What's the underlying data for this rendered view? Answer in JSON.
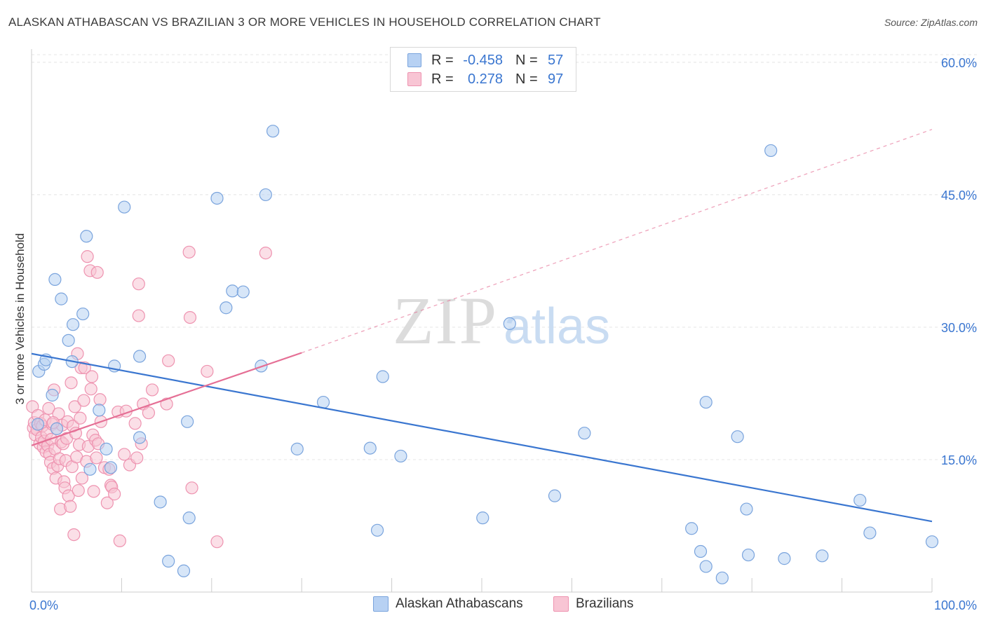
{
  "header": {
    "title": "ALASKAN ATHABASCAN VS BRAZILIAN 3 OR MORE VEHICLES IN HOUSEHOLD CORRELATION CHART",
    "source": "Source: ZipAtlas.com"
  },
  "watermark": {
    "zip": "ZIP",
    "atlas": "atlas"
  },
  "colors": {
    "blue_fill": "#b7d1f3",
    "blue_stroke": "#7aa4dd",
    "blue_line": "#3a76d0",
    "pink_fill": "#f8c5d4",
    "pink_stroke": "#ee93b0",
    "pink_line": "#e56f95",
    "axis_label": "#3a76d0",
    "grid": "#e4e4e4"
  },
  "legend_top": [
    {
      "r_label": "R =",
      "r_value": "-0.458",
      "n_label": "N =",
      "n_value": "57"
    },
    {
      "r_label": "R =",
      "r_value": "0.278",
      "n_label": "N =",
      "n_value": "97"
    }
  ],
  "legend_bottom": {
    "blue": "Alaskan Athabascans",
    "pink": "Brazilians"
  },
  "chart_data": {
    "type": "scatter",
    "title": "ALASKAN ATHABASCAN VS BRAZILIAN 3 OR MORE VEHICLES IN HOUSEHOLD CORRELATION CHART",
    "xlabel": "",
    "ylabel": "3 or more Vehicles in Household",
    "xlim": [
      0,
      100
    ],
    "ylim": [
      0,
      61.5
    ],
    "x_tick_labels": [
      "0.0%",
      "100.0%"
    ],
    "y_ticks": [
      15,
      30,
      45,
      60
    ],
    "y_tick_labels": [
      "15.0%",
      "30.0%",
      "45.0%",
      "60.0%"
    ],
    "grid": true,
    "legend": "top-center",
    "series": [
      {
        "name": "Alaskan Athabascans",
        "trend": {
          "x": [
            0,
            100
          ],
          "y": [
            27.0,
            8.0
          ]
        },
        "points": [
          [
            0.8,
            25.0
          ],
          [
            1.4,
            25.8
          ],
          [
            1.6,
            26.3
          ],
          [
            2.3,
            22.3
          ],
          [
            2.6,
            35.4
          ],
          [
            3.3,
            33.2
          ],
          [
            4.1,
            28.5
          ],
          [
            4.5,
            26.1
          ],
          [
            4.6,
            30.3
          ],
          [
            5.7,
            31.5
          ],
          [
            6.1,
            40.3
          ],
          [
            6.5,
            13.9
          ],
          [
            7.5,
            20.6
          ],
          [
            8.3,
            16.2
          ],
          [
            8.8,
            14.1
          ],
          [
            9.2,
            25.6
          ],
          [
            10.3,
            43.6
          ],
          [
            12.0,
            26.7
          ],
          [
            12.0,
            17.5
          ],
          [
            14.3,
            10.2
          ],
          [
            15.2,
            3.5
          ],
          [
            16.9,
            2.4
          ],
          [
            17.3,
            19.3
          ],
          [
            17.5,
            8.4
          ],
          [
            20.6,
            44.6
          ],
          [
            21.6,
            32.2
          ],
          [
            22.3,
            34.1
          ],
          [
            23.5,
            34.0
          ],
          [
            25.5,
            25.6
          ],
          [
            26.0,
            45.0
          ],
          [
            26.8,
            52.2
          ],
          [
            29.5,
            16.2
          ],
          [
            32.4,
            21.5
          ],
          [
            37.6,
            16.3
          ],
          [
            38.4,
            7.0
          ],
          [
            39.0,
            24.4
          ],
          [
            41.0,
            15.4
          ],
          [
            50.1,
            8.4
          ],
          [
            53.1,
            30.4
          ],
          [
            58.1,
            10.9
          ],
          [
            61.4,
            18.0
          ],
          [
            73.3,
            7.2
          ],
          [
            74.3,
            4.6
          ],
          [
            74.9,
            21.5
          ],
          [
            74.9,
            2.9
          ],
          [
            76.7,
            1.6
          ],
          [
            78.4,
            17.6
          ],
          [
            79.4,
            9.4
          ],
          [
            79.6,
            4.2
          ],
          [
            82.1,
            50.0
          ],
          [
            83.6,
            3.8
          ],
          [
            87.8,
            4.1
          ],
          [
            92.0,
            10.4
          ],
          [
            93.1,
            6.7
          ],
          [
            100.0,
            5.7
          ],
          [
            0.7,
            19.0
          ],
          [
            2.8,
            18.5
          ]
        ]
      },
      {
        "name": "Brazilians",
        "trend": {
          "x": [
            0,
            30,
            100
          ],
          "y": [
            16.6,
            27.1,
            52.4
          ]
        },
        "points": [
          [
            0.1,
            21.0
          ],
          [
            0.2,
            18.6
          ],
          [
            0.3,
            19.2
          ],
          [
            0.4,
            17.8
          ],
          [
            0.6,
            18.4
          ],
          [
            0.7,
            20.0
          ],
          [
            0.9,
            16.8
          ],
          [
            1.0,
            19.1
          ],
          [
            1.1,
            17.5
          ],
          [
            1.2,
            18.8
          ],
          [
            1.3,
            16.4
          ],
          [
            1.4,
            17.1
          ],
          [
            1.5,
            19.5
          ],
          [
            1.6,
            15.9
          ],
          [
            1.7,
            18.0
          ],
          [
            1.8,
            16.6
          ],
          [
            1.9,
            20.8
          ],
          [
            2.0,
            15.6
          ],
          [
            2.1,
            14.7
          ],
          [
            2.2,
            17.3
          ],
          [
            2.3,
            19.0
          ],
          [
            2.4,
            14.0
          ],
          [
            2.5,
            22.9
          ],
          [
            2.6,
            16.2
          ],
          [
            2.7,
            12.9
          ],
          [
            2.8,
            18.5
          ],
          [
            2.9,
            14.3
          ],
          [
            3.0,
            20.2
          ],
          [
            3.1,
            15.1
          ],
          [
            3.2,
            9.4
          ],
          [
            3.3,
            17.0
          ],
          [
            3.4,
            18.9
          ],
          [
            3.5,
            16.8
          ],
          [
            3.6,
            12.5
          ],
          [
            3.7,
            11.8
          ],
          [
            3.8,
            14.9
          ],
          [
            3.9,
            17.4
          ],
          [
            4.0,
            19.3
          ],
          [
            4.1,
            10.9
          ],
          [
            4.3,
            9.7
          ],
          [
            4.4,
            23.7
          ],
          [
            4.5,
            14.2
          ],
          [
            4.6,
            18.8
          ],
          [
            4.7,
            6.5
          ],
          [
            4.8,
            21.0
          ],
          [
            4.9,
            18.0
          ],
          [
            5.0,
            15.3
          ],
          [
            5.1,
            27.0
          ],
          [
            5.2,
            11.5
          ],
          [
            5.3,
            16.7
          ],
          [
            5.4,
            19.7
          ],
          [
            5.5,
            25.4
          ],
          [
            5.6,
            12.9
          ],
          [
            5.8,
            21.7
          ],
          [
            5.9,
            25.4
          ],
          [
            6.1,
            14.8
          ],
          [
            6.2,
            38.0
          ],
          [
            6.3,
            16.5
          ],
          [
            6.5,
            36.4
          ],
          [
            6.6,
            23.0
          ],
          [
            6.7,
            24.4
          ],
          [
            6.8,
            17.8
          ],
          [
            6.9,
            11.4
          ],
          [
            7.1,
            17.2
          ],
          [
            7.2,
            15.2
          ],
          [
            7.3,
            36.2
          ],
          [
            7.4,
            16.8
          ],
          [
            7.6,
            21.8
          ],
          [
            7.7,
            19.3
          ],
          [
            8.1,
            14.1
          ],
          [
            8.4,
            10.1
          ],
          [
            8.6,
            13.9
          ],
          [
            8.8,
            12.1
          ],
          [
            8.9,
            11.9
          ],
          [
            9.2,
            11.1
          ],
          [
            9.6,
            20.4
          ],
          [
            9.8,
            5.8
          ],
          [
            10.3,
            15.6
          ],
          [
            10.5,
            20.5
          ],
          [
            10.9,
            14.4
          ],
          [
            11.5,
            19.1
          ],
          [
            11.7,
            15.2
          ],
          [
            11.9,
            31.3
          ],
          [
            11.9,
            34.9
          ],
          [
            12.2,
            16.8
          ],
          [
            12.4,
            21.3
          ],
          [
            13.0,
            20.3
          ],
          [
            13.4,
            22.9
          ],
          [
            15.0,
            21.3
          ],
          [
            15.2,
            26.2
          ],
          [
            17.5,
            38.5
          ],
          [
            17.6,
            31.1
          ],
          [
            17.8,
            11.8
          ],
          [
            19.5,
            25.0
          ],
          [
            20.6,
            5.7
          ],
          [
            26.0,
            38.4
          ],
          [
            2.4,
            19.2
          ]
        ]
      }
    ]
  }
}
